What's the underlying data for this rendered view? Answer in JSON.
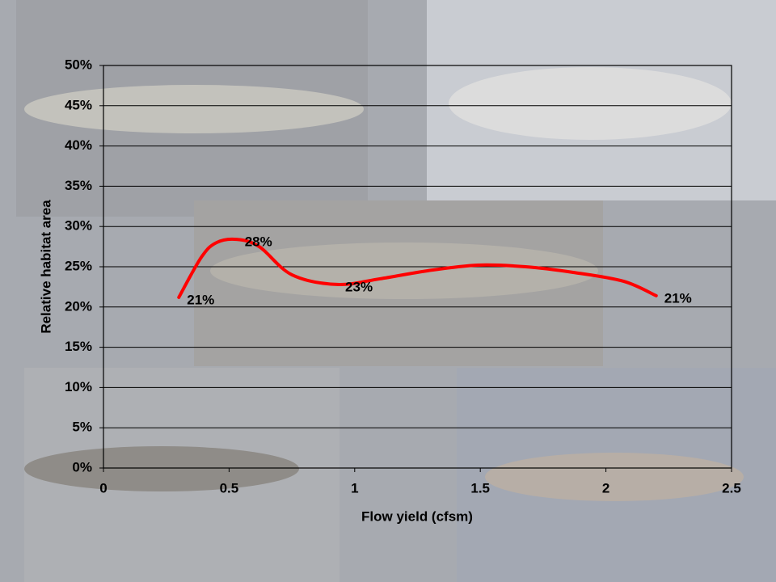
{
  "chart_data": {
    "type": "line",
    "x_label": "Flow yield (cfsm)",
    "y_label": "Relative habitat area",
    "x": [
      0.3,
      0.39,
      0.45,
      0.53,
      0.62,
      0.75,
      0.93,
      1.1,
      1.29,
      1.49,
      1.68,
      1.87,
      2.07,
      2.2
    ],
    "series": [
      {
        "color": "#ff0000",
        "values": [
          21.2,
          26.2,
          28.0,
          28.4,
          27.5,
          24,
          22.8,
          23.5,
          24.5,
          25.2,
          25,
          24.3,
          23.2,
          21.4
        ],
        "value_labels": [
          "21%",
          null,
          null,
          "28%",
          null,
          null,
          "23%",
          null,
          null,
          null,
          null,
          null,
          null,
          "21%"
        ]
      }
    ],
    "xlim": [
      0,
      2.5
    ],
    "xticks": [
      0,
      0.5,
      1,
      1.5,
      2,
      2.5
    ],
    "ylim": [
      0,
      50
    ],
    "yticks": [
      {
        "value": 0,
        "label": "0%"
      },
      {
        "value": 5,
        "label": "5%"
      },
      {
        "value": 10,
        "label": "10%"
      },
      {
        "value": 15,
        "label": "15%"
      },
      {
        "value": 20,
        "label": "20%"
      },
      {
        "value": 25,
        "label": "25%"
      },
      {
        "value": 30,
        "label": "30%"
      },
      {
        "value": 35,
        "label": "35%"
      },
      {
        "value": 40,
        "label": "40%"
      },
      {
        "value": 45,
        "label": "45%"
      },
      {
        "value": 50,
        "label": "50%"
      }
    ],
    "grid": true
  }
}
